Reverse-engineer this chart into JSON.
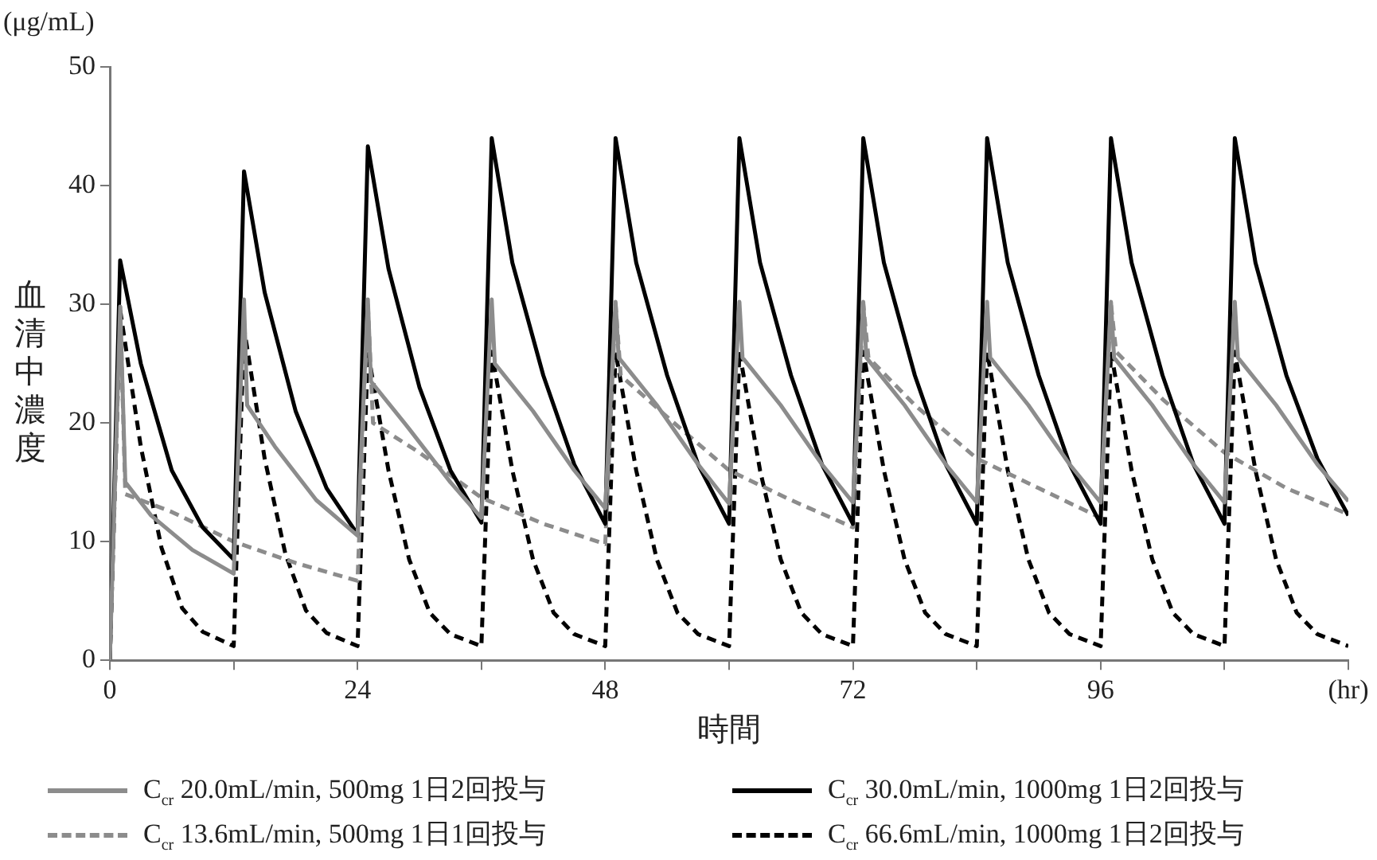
{
  "chart_data": {
    "type": "line",
    "xlabel": "時間",
    "ylabel": "血清中濃度",
    "annotations": [
      "(μg/mL)"
    ],
    "xlim": [
      0,
      120
    ],
    "xticks": [
      0,
      {
        "value": 12,
        "label": null
      },
      24,
      {
        "value": 36,
        "label": null
      },
      48,
      {
        "value": 60,
        "label": null
      },
      72,
      {
        "value": 84,
        "label": null
      },
      96,
      {
        "value": 108,
        "label": null
      },
      {
        "value": 120,
        "label": "(hr)"
      }
    ],
    "ylim": [
      0,
      50
    ],
    "yticks": [
      0,
      10,
      20,
      30,
      40,
      50
    ],
    "grid": false,
    "legend": "bottom",
    "series": [
      {
        "name": "C$_{cr}$ 20.0mL/min, 500mg 1日2回投与",
        "color": "#8c8c8c",
        "line_style": "solid",
        "x": [
          0,
          1,
          1.5,
          4,
          8,
          12,
          13,
          13.3,
          16,
          20,
          24,
          25,
          25.3,
          29,
          33,
          36,
          37,
          37.3,
          41,
          45,
          48,
          49,
          49.3,
          53,
          57,
          60,
          61,
          61.3,
          65,
          69,
          72,
          73,
          73.3,
          77,
          81,
          84,
          85,
          85.3,
          89,
          93,
          96,
          97,
          97.3,
          101,
          105,
          108,
          109,
          109.3,
          113,
          117,
          120
        ],
        "values": [
          0,
          29.8,
          15,
          12.2,
          9.3,
          7.3,
          30.4,
          21.5,
          18,
          13.5,
          10.5,
          30.4,
          23.5,
          19.5,
          15,
          12,
          30.4,
          25,
          21,
          16,
          12.8,
          30.2,
          25.5,
          21.5,
          16.5,
          13.2,
          30.2,
          25.5,
          21.5,
          16.5,
          13.3,
          30.2,
          25.5,
          21.5,
          16.5,
          13.3,
          30.2,
          25.5,
          21.5,
          16.5,
          13.3,
          30.2,
          25.5,
          21.5,
          16.5,
          13.3,
          30.2,
          25.5,
          21.5,
          16.5,
          13.4
        ]
      },
      {
        "name": "C$_{cr}$ 30.0mL/min, 1000mg 1日2回投与",
        "color": "#000000",
        "line_style": "solid",
        "x": [
          0,
          1,
          3,
          6,
          9,
          12,
          13,
          15,
          18,
          21,
          24,
          25,
          27,
          30,
          33,
          36,
          37,
          39,
          42,
          45,
          48,
          49,
          51,
          54,
          57,
          60,
          61,
          63,
          66,
          69,
          72,
          73,
          75,
          78,
          81,
          84,
          85,
          87,
          90,
          93,
          96,
          97,
          99,
          102,
          105,
          108,
          109,
          111,
          114,
          117,
          120
        ],
        "values": [
          0,
          33.7,
          25,
          16,
          11.2,
          8.5,
          41.2,
          31,
          21,
          14.5,
          10.6,
          43.3,
          33,
          23,
          16,
          11.6,
          44,
          33.5,
          24,
          16.5,
          11.5,
          44,
          33.5,
          24,
          16.5,
          11.5,
          44,
          33.5,
          24,
          16.5,
          11.5,
          44,
          33.5,
          24,
          16.5,
          11.5,
          44,
          33.5,
          24,
          16.5,
          11.5,
          44,
          33.5,
          24,
          16.5,
          11.5,
          44,
          33.5,
          24,
          17,
          12.2
        ]
      },
      {
        "name": "C$_{cr}$ 13.6mL/min, 500mg 1日1回投与",
        "color": "#8c8c8c",
        "line_style": "dashed",
        "x": [
          0,
          1,
          1.5,
          6,
          12,
          18,
          24,
          25,
          25.5,
          30,
          36,
          42,
          48,
          49,
          49.5,
          54,
          60,
          66,
          72,
          73,
          73.5,
          78,
          84,
          90,
          96,
          97,
          97.5,
          102,
          108,
          114,
          120
        ],
        "values": [
          0,
          29.8,
          14,
          12.5,
          10,
          8.2,
          6.7,
          30,
          20,
          17.5,
          13.7,
          11.5,
          9.8,
          30,
          24,
          20.5,
          16,
          13.5,
          11.2,
          30,
          25.5,
          21.5,
          17,
          14.5,
          12,
          30,
          26,
          22,
          17.5,
          14.5,
          12.3
        ]
      },
      {
        "name": "C$_{cr}$ 66.6mL/min, 1000mg 1日2回投与",
        "color": "#000000",
        "line_style": "dashed",
        "x": [
          0,
          1,
          3,
          5,
          7,
          9,
          12,
          13,
          15,
          17,
          19,
          21,
          24,
          25,
          27,
          29,
          31,
          33,
          36,
          37,
          39,
          41,
          43,
          45,
          48,
          49,
          51,
          53,
          55,
          57,
          60,
          61,
          63,
          65,
          67,
          69,
          72,
          73,
          75,
          77,
          79,
          81,
          84,
          85,
          87,
          89,
          91,
          93,
          96,
          97,
          99,
          101,
          103,
          105,
          108,
          109,
          111,
          113,
          115,
          117,
          120
        ],
        "values": [
          0,
          29.5,
          18,
          9.5,
          4.4,
          2.4,
          1.2,
          28,
          17,
          9,
          4.2,
          2.3,
          1.2,
          26,
          16,
          8.5,
          4,
          2.2,
          1.2,
          26,
          16,
          8.5,
          4,
          2.2,
          1.2,
          26,
          16,
          8.5,
          4,
          2.2,
          1.2,
          26,
          16,
          8.5,
          4,
          2.2,
          1.2,
          26,
          16,
          8.5,
          4,
          2.2,
          1.2,
          26,
          16,
          8.5,
          4,
          2.2,
          1.2,
          26,
          16,
          8.5,
          4,
          2.2,
          1.2,
          26,
          16,
          8.5,
          4,
          2.2,
          1.2
        ]
      }
    ]
  }
}
